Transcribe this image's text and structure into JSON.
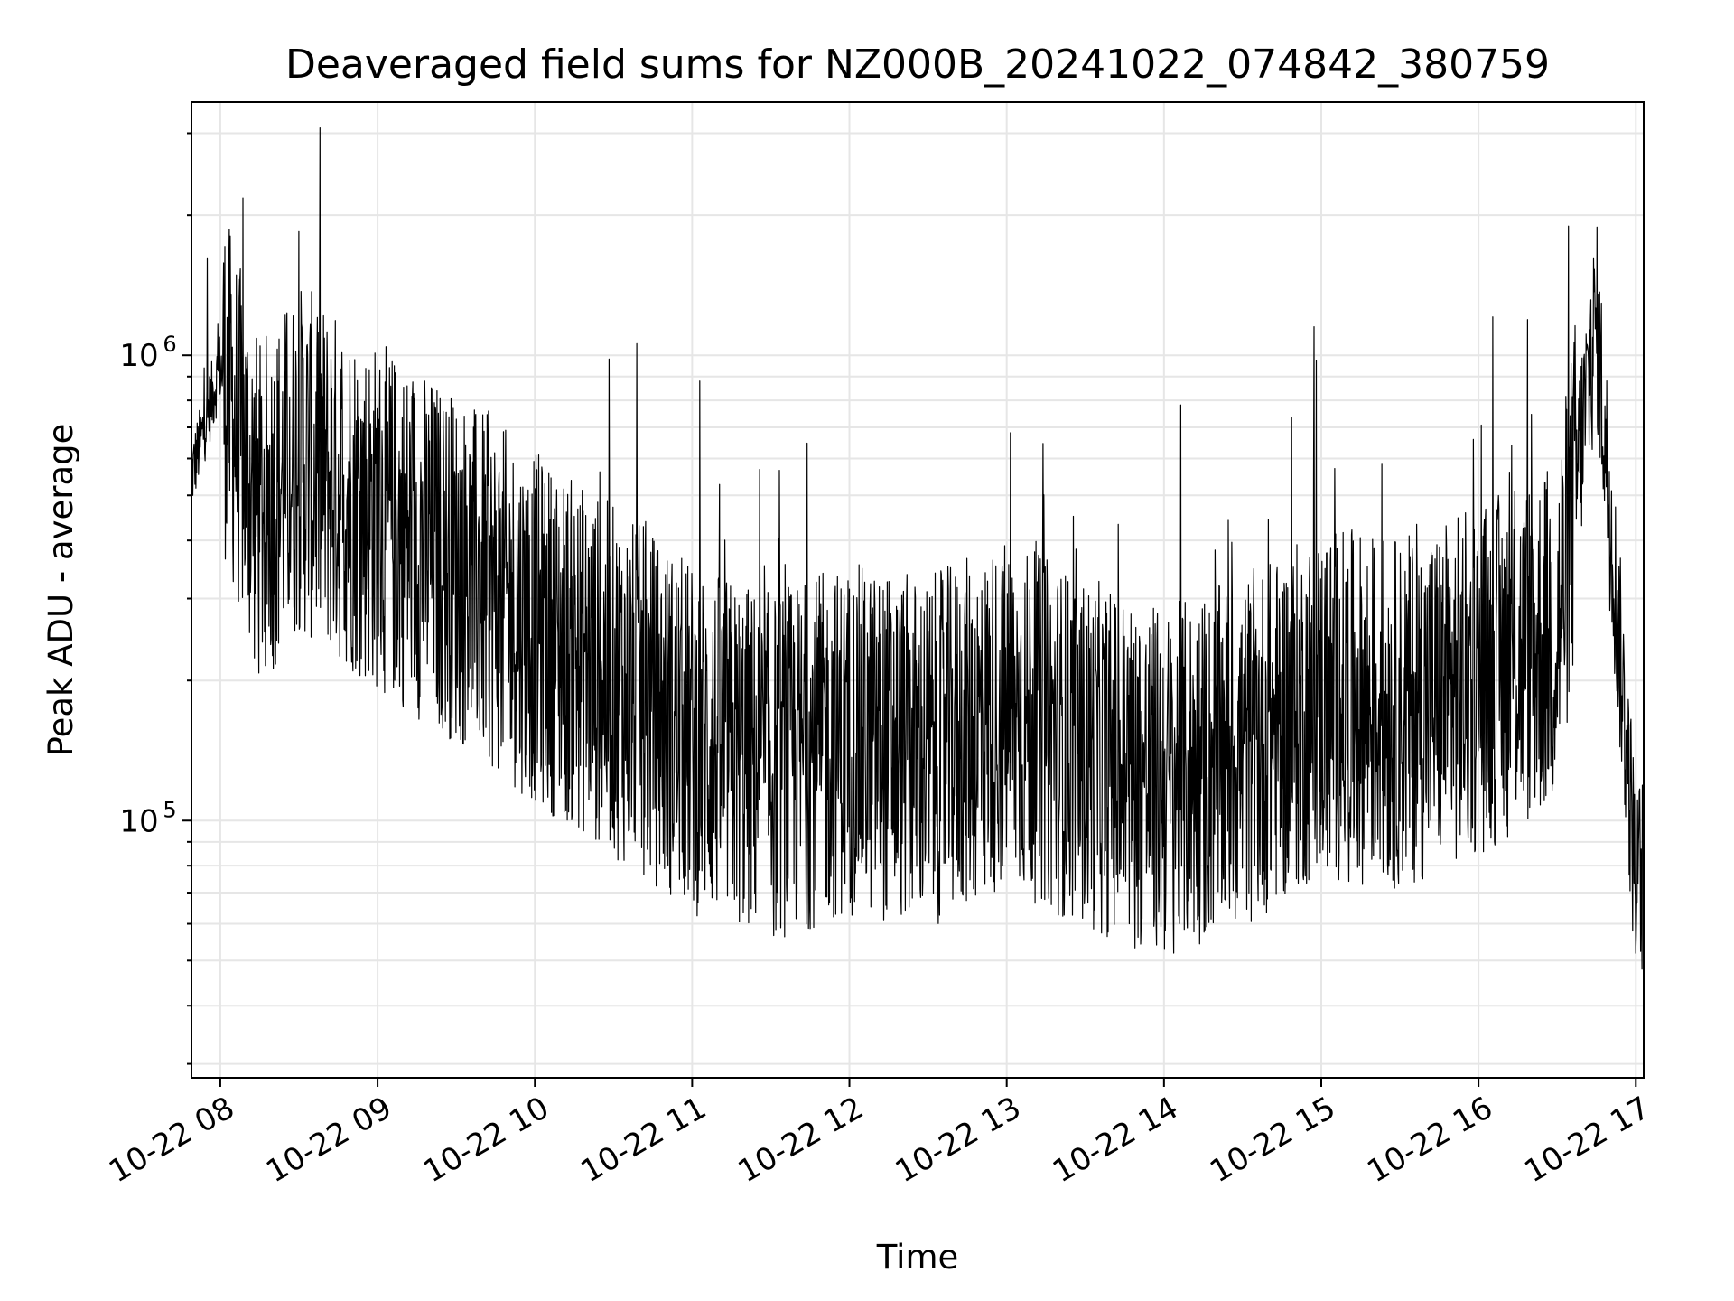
{
  "chart_data": {
    "type": "line",
    "title": "Deaveraged field sums for NZ000B_20241022_074842_380759",
    "xlabel": "Time",
    "ylabel": "Peak ADU - average",
    "y_scale": "log",
    "ylim": [
      28000,
      3500000
    ],
    "xlim": [
      "2024-10-22 07:49",
      "2024-10-22 17:03"
    ],
    "x_ticks": [
      "10-22 08",
      "10-22 09",
      "10-22 10",
      "10-22 11",
      "10-22 12",
      "10-22 13",
      "10-22 14",
      "10-22 15",
      "10-22 16",
      "10-22 17"
    ],
    "y_ticks": [
      {
        "label": "10",
        "exponent": "5",
        "value": 100000
      },
      {
        "label": "10",
        "exponent": "6",
        "value": 1000000
      }
    ],
    "grid": true,
    "line_color": "#000000",
    "series": [
      {
        "values_description": "dense noisy time series sampled hourly below",
        "x": [
          "2024-10-22 07:49",
          "2024-10-22 08:00",
          "2024-10-22 08:15",
          "2024-10-22 08:30",
          "2024-10-22 09:00",
          "2024-10-22 09:30",
          "2024-10-22 10:00",
          "2024-10-22 10:30",
          "2024-10-22 11:00",
          "2024-10-22 11:30",
          "2024-10-22 12:00",
          "2024-10-22 12:30",
          "2024-10-22 13:00",
          "2024-10-22 13:30",
          "2024-10-22 14:00",
          "2024-10-22 14:30",
          "2024-10-22 15:00",
          "2024-10-22 15:30",
          "2024-10-22 16:00",
          "2024-10-22 16:30",
          "2024-10-22 16:45",
          "2024-10-22 17:00"
        ],
        "values": [
          550000,
          950000,
          450000,
          600000,
          450000,
          350000,
          260000,
          200000,
          150000,
          130000,
          150000,
          140000,
          170000,
          140000,
          120000,
          140000,
          180000,
          170000,
          200000,
          250000,
          1200000,
          75000
        ]
      }
    ]
  }
}
